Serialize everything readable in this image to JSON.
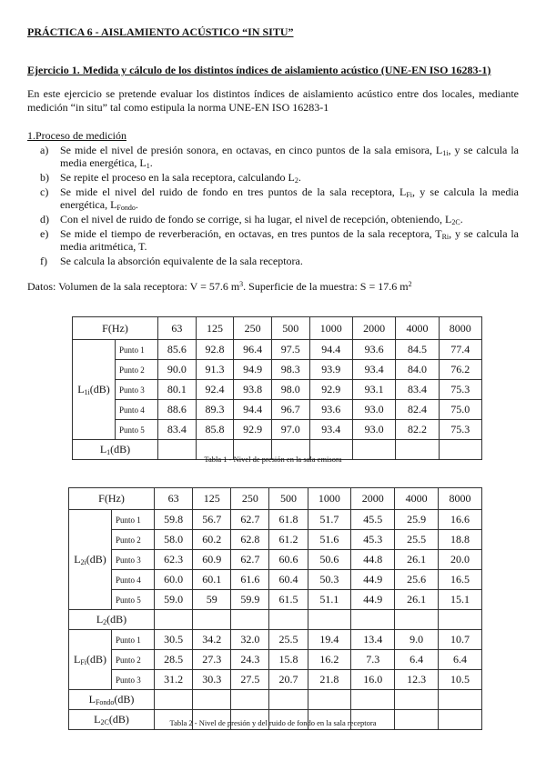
{
  "title": "PRÁCTICA 6 - AISLAMIENTO ACÚSTICO “IN SITU”",
  "exercise_heading": "Ejercicio 1. Medida y cálculo de los distintos índices de aislamiento acústico (UNE-EN ISO 16283-1)",
  "intro": "En este ejercicio se pretende evaluar los distintos índices de aislamiento acústico entre dos locales, mediante medición “in situ” tal como estipula la norma UNE-EN ISO 16283-1",
  "section": "1.Proceso de medición",
  "steps": [
    {
      "label": "a)",
      "t1": "Se mide el nivel de presión sonora, en octavas, en cinco puntos de la sala emisora, L",
      "s1": "1i",
      "t2": ", y se calcula la media energética,   L",
      "s2": "1",
      "t3": "."
    },
    {
      "label": "b)",
      "t1": "Se repite el proceso en la sala receptora, calculando L",
      "s1": "2",
      "t2": "."
    },
    {
      "label": "c)",
      "t1": "Se mide el nivel del ruido de fondo en tres puntos de la sala receptora, L",
      "s1": "Fi",
      "t2": ", y se calcula la media energética, L",
      "s2": "Fondo",
      "t3": "."
    },
    {
      "label": "d)",
      "t1": "Con el nivel de ruido de fondo se corrige, si ha lugar, el nivel de recepción, obteniendo, L",
      "s1": "2C",
      "t2": "."
    },
    {
      "label": "e)",
      "t1": "Se mide el tiempo de reverberación, en octavas, en tres puntos de la sala receptora, T",
      "s1": "Ri",
      "t2": ", y se calcula la media aritmética, T."
    },
    {
      "label": "f)",
      "t1": "Se calcula la absorción equivalente de la sala receptora."
    }
  ],
  "datos": {
    "t1": "Datos: Volumen de la sala receptora:  V = 57.6 m",
    "sup1": "3",
    "t2": ".  Superficie de la muestra:  S = 17.6 m",
    "sup2": "2"
  },
  "freq_header": "F(Hz)",
  "freqs": [
    "63",
    "125",
    "250",
    "500",
    "1000",
    "2000",
    "4000",
    "8000"
  ],
  "table1": {
    "row_label": {
      "main": "L",
      "sub": "1i",
      "unit": "(dB)"
    },
    "rows": [
      {
        "p": "Punto 1",
        "v": [
          "85.6",
          "92.8",
          "96.4",
          "97.5",
          "94.4",
          "93.6",
          "84.5",
          "77.4"
        ]
      },
      {
        "p": "Punto 2",
        "v": [
          "90.0",
          "91.3",
          "94.9",
          "98.3",
          "93.9",
          "93.4",
          "84.0",
          "76.2"
        ]
      },
      {
        "p": "Punto 3",
        "v": [
          "80.1",
          "92.4",
          "93.8",
          "98.0",
          "92.9",
          "93.1",
          "83.4",
          "75.3"
        ]
      },
      {
        "p": "Punto 4",
        "v": [
          "88.6",
          "89.3",
          "94.4",
          "96.7",
          "93.6",
          "93.0",
          "82.4",
          "75.0"
        ]
      },
      {
        "p": "Punto 5",
        "v": [
          "83.4",
          "85.8",
          "92.9",
          "97.0",
          "93.4",
          "93.0",
          "82.2",
          "75.3"
        ]
      }
    ],
    "avg_label": {
      "main": "L",
      "sub": "1",
      "unit": "(dB)"
    },
    "caption": "Tabla 1 - Nivel de presión en la sala emisora"
  },
  "table2": {
    "row_label": {
      "main": "L",
      "sub": "2i",
      "unit": "(dB)"
    },
    "rows": [
      {
        "p": "Punto 1",
        "v": [
          "59.8",
          "56.7",
          "62.7",
          "61.8",
          "51.7",
          "45.5",
          "25.9",
          "16.6"
        ]
      },
      {
        "p": "Punto 2",
        "v": [
          "58.0",
          "60.2",
          "62.8",
          "61.2",
          "51.6",
          "45.3",
          "25.5",
          "18.8"
        ]
      },
      {
        "p": "Punto 3",
        "v": [
          "62.3",
          "60.9",
          "62.7",
          "60.6",
          "50.6",
          "44.8",
          "26.1",
          "20.0"
        ]
      },
      {
        "p": "Punto 4",
        "v": [
          "60.0",
          "60.1",
          "61.6",
          "60.4",
          "50.3",
          "44.9",
          "25.6",
          "16.5"
        ]
      },
      {
        "p": "Punto 5",
        "v": [
          "59.0",
          "59",
          "59.9",
          "61.5",
          "51.1",
          "44.9",
          "26.1",
          "15.1"
        ]
      }
    ],
    "avg_label": {
      "main": "L",
      "sub": "2",
      "unit": "(dB)"
    },
    "fondo_label": {
      "main": "L",
      "sub": "Fi",
      "unit": "(dB)"
    },
    "fondo_rows": [
      {
        "p": "Punto 1",
        "v": [
          "30.5",
          "34.2",
          "32.0",
          "25.5",
          "19.4",
          "13.4",
          "9.0",
          "10.7"
        ]
      },
      {
        "p": "Punto 2",
        "v": [
          "28.5",
          "27.3",
          "24.3",
          "15.8",
          "16.2",
          "7.3",
          "6.4",
          "6.4"
        ]
      },
      {
        "p": "Punto 3",
        "v": [
          "31.2",
          "30.3",
          "27.5",
          "20.7",
          "21.8",
          "16.0",
          "12.3",
          "10.5"
        ]
      }
    ],
    "fondo_avg_label": {
      "main": "L",
      "sub": "Fondo",
      "unit": "(dB)"
    },
    "corr_label": {
      "main": "L",
      "sub": "2C",
      "unit": "(dB)"
    },
    "caption": "Tabla 2 - Nivel de presión y del  ruido de fondo en la sala receptora"
  }
}
